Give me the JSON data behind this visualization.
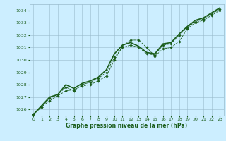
{
  "title": "Graphe pression niveau de la mer (hPa)",
  "bg_color": "#cceeff",
  "grid_color": "#99bbcc",
  "line_color": "#1a5c1a",
  "text_color": "#1a5c1a",
  "ylim": [
    1025.5,
    1034.5
  ],
  "xlim": [
    -0.5,
    23.5
  ],
  "yticks": [
    1026,
    1027,
    1028,
    1029,
    1030,
    1031,
    1032,
    1033,
    1034
  ],
  "xticks": [
    0,
    1,
    2,
    3,
    4,
    5,
    6,
    7,
    8,
    9,
    10,
    11,
    12,
    13,
    14,
    15,
    16,
    17,
    18,
    19,
    20,
    21,
    22,
    23
  ],
  "series1_x": [
    0,
    1,
    2,
    3,
    4,
    5,
    6,
    7,
    8,
    9,
    10,
    11,
    12,
    13,
    14,
    15,
    16,
    17,
    18,
    19,
    20,
    21,
    22,
    23
  ],
  "series1_y": [
    1025.6,
    1026.2,
    1026.7,
    1027.1,
    1027.5,
    1027.6,
    1027.9,
    1028.0,
    1028.3,
    1028.7,
    1030.0,
    1031.1,
    1031.6,
    1031.6,
    1031.0,
    1030.3,
    1030.9,
    1031.0,
    1031.5,
    1032.5,
    1033.0,
    1033.2,
    1033.6,
    1034.0
  ],
  "series2_x": [
    0,
    1,
    2,
    3,
    4,
    5,
    6,
    7,
    8,
    9,
    10,
    11,
    12,
    13,
    14,
    15,
    16,
    17,
    18,
    19,
    20,
    21,
    22,
    23
  ],
  "series2_y": [
    1025.6,
    1026.2,
    1026.9,
    1027.2,
    1027.8,
    1027.5,
    1028.0,
    1028.2,
    1028.5,
    1029.0,
    1030.2,
    1031.0,
    1031.2,
    1031.0,
    1030.5,
    1030.4,
    1031.2,
    1031.3,
    1032.0,
    1032.6,
    1033.1,
    1033.3,
    1033.7,
    1034.1
  ],
  "series3_x": [
    0,
    1,
    2,
    3,
    4,
    5,
    6,
    7,
    8,
    9,
    10,
    11,
    12,
    13,
    14,
    15,
    16,
    17,
    18,
    19,
    20,
    21,
    22,
    23
  ],
  "series3_y": [
    1025.6,
    1026.3,
    1027.0,
    1027.2,
    1028.0,
    1027.7,
    1028.1,
    1028.3,
    1028.6,
    1029.2,
    1030.5,
    1031.2,
    1031.4,
    1031.1,
    1030.6,
    1030.5,
    1031.3,
    1031.4,
    1032.1,
    1032.7,
    1033.2,
    1033.4,
    1033.8,
    1034.2
  ]
}
